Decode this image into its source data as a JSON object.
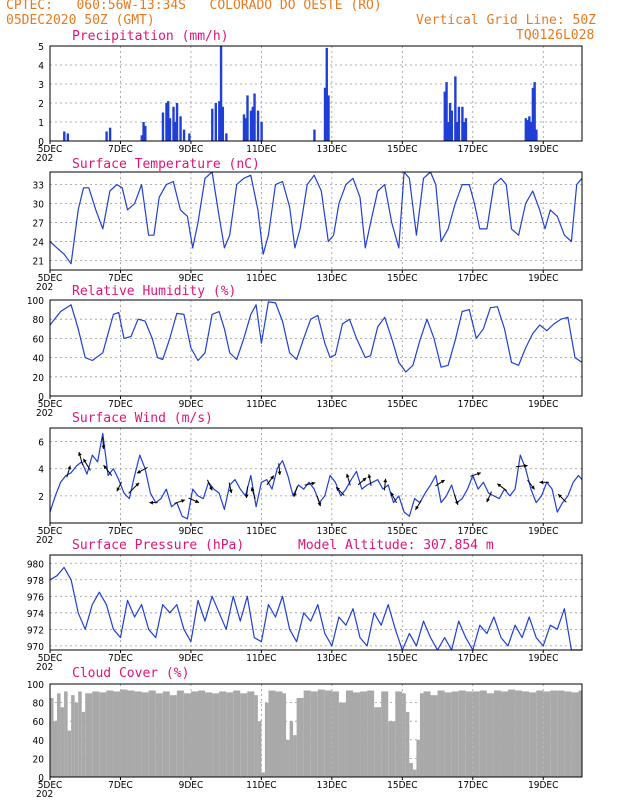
{
  "header": {
    "line1": "CPTEC:   060:56W-13:34S   COLORADO DO OESTE (RO)",
    "line2_left": "05DEC2020 50Z (GMT)",
    "line2_right": "Vertical Grid Line: 50Z",
    "line3_right": "TQ0126L028"
  },
  "colors": {
    "header": "#e87a1e",
    "titles": "#e0147a",
    "series": "#1f3fd6",
    "cloud": "#a9a9a9"
  },
  "x_axis": {
    "labels": [
      "5DEC",
      "7DEC",
      "9DEC",
      "11DEC",
      "13DEC",
      "15DEC",
      "17DEC",
      "19DEC"
    ],
    "day_range": [
      5,
      20.1
    ],
    "under_label": "202"
  },
  "chart_data": [
    {
      "type": "bar",
      "title": "Precipitation (mm/h)",
      "ylim": [
        0,
        5
      ],
      "yticks": [
        "0",
        "1",
        "2",
        "3",
        "4",
        "5"
      ],
      "x_days": [
        5.4,
        5.5,
        6.6,
        6.7,
        7.6,
        7.65,
        7.7,
        8.2,
        8.3,
        8.35,
        8.4,
        8.5,
        8.55,
        8.6,
        8.7,
        8.8,
        8.95,
        9.6,
        9.7,
        9.8,
        9.85,
        9.9,
        10.0,
        10.5,
        10.55,
        10.6,
        10.7,
        10.75,
        10.8,
        10.9,
        11.0,
        12.5,
        12.8,
        12.85,
        12.9,
        16.2,
        16.25,
        16.3,
        16.35,
        16.4,
        16.5,
        16.55,
        16.6,
        16.7,
        16.75,
        16.8,
        18.5,
        18.55,
        18.6,
        18.65,
        18.7,
        18.75,
        18.8
      ],
      "values": [
        0.5,
        0.4,
        0.5,
        0.7,
        0.3,
        1.0,
        0.8,
        1.5,
        2.0,
        2.1,
        1.2,
        1.8,
        1.0,
        2.0,
        1.3,
        0.6,
        0.4,
        1.7,
        2.0,
        2.1,
        5.0,
        1.8,
        0.4,
        1.4,
        1.2,
        2.4,
        1.6,
        1.8,
        2.5,
        1.6,
        1.0,
        0.6,
        2.8,
        4.9,
        2.4,
        2.6,
        3.1,
        1.0,
        2.0,
        1.6,
        3.4,
        1.0,
        1.8,
        1.8,
        1.0,
        1.2,
        1.2,
        1.1,
        1.3,
        1.0,
        2.8,
        3.1,
        0.6
      ]
    },
    {
      "type": "line",
      "title": "Surface Temperature (nC)",
      "ylim": [
        19.5,
        35
      ],
      "yticks": [
        "21",
        "24",
        "27",
        "30",
        "33"
      ],
      "x_days": [
        5.0,
        5.2,
        5.4,
        5.6,
        5.8,
        5.95,
        6.1,
        6.3,
        6.5,
        6.7,
        6.9,
        7.05,
        7.2,
        7.4,
        7.6,
        7.8,
        7.95,
        8.1,
        8.3,
        8.5,
        8.7,
        8.9,
        9.05,
        9.2,
        9.4,
        9.6,
        9.8,
        9.95,
        10.1,
        10.3,
        10.5,
        10.7,
        10.9,
        11.05,
        11.2,
        11.4,
        11.6,
        11.8,
        11.95,
        12.1,
        12.3,
        12.5,
        12.7,
        12.9,
        13.05,
        13.2,
        13.4,
        13.6,
        13.8,
        13.95,
        14.1,
        14.3,
        14.5,
        14.7,
        14.9,
        15.05,
        15.2,
        15.4,
        15.6,
        15.8,
        15.95,
        16.1,
        16.3,
        16.5,
        16.7,
        16.9,
        17.05,
        17.2,
        17.4,
        17.6,
        17.8,
        17.95,
        18.1,
        18.3,
        18.5,
        18.7,
        18.9,
        19.05,
        19.2,
        19.4,
        19.6,
        19.8,
        19.95,
        20.1
      ],
      "values": [
        24,
        23,
        22,
        20.5,
        29,
        32.5,
        32.5,
        29,
        26,
        32,
        33,
        32.5,
        29,
        30,
        33,
        25,
        25,
        31,
        33,
        33.5,
        29,
        28,
        23,
        27,
        34,
        35,
        28,
        23,
        25,
        33,
        34,
        34.5,
        29,
        22,
        25,
        33,
        33.5,
        29.5,
        23,
        26,
        33,
        34.5,
        32,
        24,
        25,
        30,
        33,
        34,
        31,
        23,
        27,
        32,
        33,
        27,
        23,
        35,
        34,
        25,
        34,
        35,
        33,
        24,
        26,
        30,
        33,
        33,
        30,
        26,
        26,
        33,
        34,
        33,
        26,
        25,
        30,
        32,
        29,
        26,
        29,
        28,
        25,
        24,
        33,
        34
      ]
    },
    {
      "type": "line",
      "title": "Relative Humidity (%)",
      "ylim": [
        0,
        100
      ],
      "yticks": [
        "0",
        "20",
        "40",
        "60",
        "80",
        "100"
      ],
      "x_days": [
        5.0,
        5.3,
        5.6,
        5.8,
        6.0,
        6.2,
        6.5,
        6.8,
        6.95,
        7.1,
        7.3,
        7.5,
        7.7,
        7.9,
        8.05,
        8.2,
        8.4,
        8.6,
        8.8,
        9.0,
        9.2,
        9.4,
        9.6,
        9.8,
        9.95,
        10.1,
        10.3,
        10.5,
        10.7,
        10.85,
        11.0,
        11.2,
        11.4,
        11.6,
        11.8,
        12.0,
        12.2,
        12.4,
        12.6,
        12.8,
        12.95,
        13.1,
        13.3,
        13.5,
        13.7,
        13.95,
        14.1,
        14.3,
        14.5,
        14.7,
        14.9,
        15.1,
        15.3,
        15.5,
        15.7,
        15.9,
        16.1,
        16.3,
        16.5,
        16.7,
        16.9,
        17.1,
        17.3,
        17.5,
        17.7,
        17.9,
        18.1,
        18.3,
        18.5,
        18.7,
        18.9,
        19.1,
        19.3,
        19.5,
        19.7,
        19.9,
        20.1
      ],
      "values": [
        74,
        88,
        95,
        70,
        40,
        37,
        45,
        85,
        87,
        60,
        62,
        80,
        78,
        60,
        40,
        38,
        60,
        86,
        85,
        50,
        37,
        45,
        85,
        88,
        70,
        45,
        38,
        60,
        85,
        95,
        55,
        98,
        97,
        78,
        45,
        38,
        60,
        80,
        84,
        55,
        40,
        43,
        75,
        80,
        60,
        40,
        42,
        72,
        82,
        60,
        35,
        25,
        32,
        58,
        80,
        60,
        30,
        32,
        58,
        88,
        90,
        60,
        70,
        92,
        93,
        70,
        35,
        32,
        50,
        65,
        74,
        68,
        75,
        80,
        82,
        40,
        35
      ]
    },
    {
      "type": "line",
      "title": "Surface Wind (m/s)",
      "ylim": [
        0,
        7
      ],
      "yticks": [
        "2",
        "4",
        "6"
      ],
      "x_days": [
        5.0,
        5.15,
        5.3,
        5.45,
        5.6,
        5.75,
        5.9,
        6.05,
        6.2,
        6.35,
        6.5,
        6.65,
        6.8,
        6.95,
        7.1,
        7.25,
        7.4,
        7.55,
        7.7,
        7.85,
        8.0,
        8.15,
        8.3,
        8.45,
        8.6,
        8.75,
        8.9,
        9.05,
        9.2,
        9.35,
        9.5,
        9.65,
        9.8,
        9.95,
        10.1,
        10.25,
        10.4,
        10.55,
        10.7,
        10.85,
        11.0,
        11.15,
        11.3,
        11.45,
        11.6,
        11.75,
        11.9,
        12.05,
        12.2,
        12.35,
        12.5,
        12.65,
        12.8,
        12.95,
        13.1,
        13.25,
        13.4,
        13.55,
        13.7,
        13.85,
        14.0,
        14.15,
        14.3,
        14.45,
        14.6,
        14.75,
        14.9,
        15.05,
        15.2,
        15.35,
        15.5,
        15.65,
        15.8,
        15.95,
        16.1,
        16.25,
        16.4,
        16.55,
        16.7,
        16.85,
        17.0,
        17.15,
        17.3,
        17.45,
        17.6,
        17.75,
        17.9,
        18.05,
        18.2,
        18.35,
        18.5,
        18.65,
        18.8,
        18.95,
        19.1,
        19.25,
        19.4,
        19.55,
        19.7,
        19.85,
        20.0,
        20.1
      ],
      "values": [
        0.8,
        2.0,
        3.0,
        3.5,
        3.7,
        4.2,
        4.5,
        3.6,
        5.0,
        4.5,
        6.6,
        3.5,
        4.0,
        3.2,
        2.2,
        1.8,
        3.5,
        5.0,
        4.0,
        2.2,
        1.5,
        1.8,
        2.5,
        1.2,
        1.5,
        0.5,
        0.3,
        2.5,
        2.0,
        1.8,
        3.0,
        2.5,
        2.2,
        1.0,
        2.8,
        3.2,
        2.5,
        2.0,
        3.5,
        1.2,
        3.0,
        3.2,
        2.5,
        4.0,
        4.6,
        3.5,
        2.0,
        2.8,
        2.5,
        3.0,
        2.5,
        1.5,
        2.0,
        3.5,
        3.0,
        2.0,
        2.5,
        3.2,
        3.8,
        2.5,
        2.8,
        3.0,
        3.2,
        2.5,
        2.8,
        1.5,
        2.0,
        0.8,
        0.5,
        1.8,
        1.5,
        2.2,
        2.8,
        3.5,
        1.5,
        2.0,
        2.8,
        1.5,
        1.8,
        2.5,
        3.5,
        2.5,
        3.0,
        2.2,
        2.0,
        1.8,
        2.5,
        2.0,
        2.5,
        5.0,
        4.0,
        2.5,
        1.5,
        2.0,
        3.0,
        2.5,
        0.8,
        1.5,
        2.0,
        3.0,
        3.5,
        3.2
      ]
    },
    {
      "type": "line",
      "title": "Surface Pressure (hPa)",
      "annotation": "Model Altitude: 307.854 m",
      "ylim": [
        969.5,
        981
      ],
      "yticks": [
        "970",
        "972",
        "974",
        "976",
        "978",
        "980"
      ],
      "x_days": [
        5.0,
        5.2,
        5.4,
        5.6,
        5.8,
        6.0,
        6.2,
        6.4,
        6.6,
        6.8,
        7.0,
        7.2,
        7.4,
        7.6,
        7.8,
        8.0,
        8.2,
        8.4,
        8.6,
        8.8,
        9.0,
        9.2,
        9.4,
        9.6,
        9.8,
        10.0,
        10.2,
        10.4,
        10.6,
        10.8,
        11.0,
        11.2,
        11.4,
        11.6,
        11.8,
        12.0,
        12.2,
        12.4,
        12.6,
        12.8,
        13.0,
        13.2,
        13.4,
        13.6,
        13.8,
        14.0,
        14.2,
        14.4,
        14.6,
        14.8,
        15.0,
        15.2,
        15.4,
        15.6,
        15.8,
        16.0,
        16.2,
        16.4,
        16.6,
        16.8,
        17.0,
        17.2,
        17.4,
        17.6,
        17.8,
        18.0,
        18.2,
        18.4,
        18.6,
        18.8,
        19.0,
        19.2,
        19.4,
        19.6,
        19.8,
        20.0,
        20.1
      ],
      "values": [
        978,
        978.5,
        979.5,
        978,
        974,
        972,
        975,
        976.5,
        975,
        972,
        971,
        975.5,
        973.5,
        975,
        972,
        971,
        975,
        974,
        975,
        972,
        970.5,
        975.5,
        973,
        976,
        974,
        972,
        976,
        973,
        976,
        971,
        970.5,
        975,
        973.5,
        976,
        972,
        970.5,
        974,
        973,
        975,
        971.5,
        970,
        973.5,
        972.5,
        974.5,
        971,
        970,
        974,
        972.5,
        975,
        972,
        969,
        971.5,
        970,
        973,
        971,
        969.5,
        971,
        969,
        973,
        971,
        969.5,
        972.5,
        971.5,
        973.5,
        971,
        970,
        972.5,
        971,
        973.5,
        971,
        970,
        972.5,
        972,
        974.5,
        969.5,
        969.5,
        969.5
      ]
    },
    {
      "type": "area",
      "title": "Cloud Cover (%)",
      "ylim": [
        0,
        100
      ],
      "yticks": [
        "0",
        "20",
        "40",
        "60",
        "80",
        "100"
      ],
      "x_days": [
        5.0,
        5.1,
        5.2,
        5.3,
        5.4,
        5.5,
        5.6,
        5.7,
        5.8,
        5.9,
        6.0,
        6.2,
        6.4,
        6.6,
        6.8,
        7.0,
        7.2,
        7.4,
        7.6,
        7.8,
        8.0,
        8.2,
        8.4,
        8.6,
        8.8,
        9.0,
        9.2,
        9.4,
        9.6,
        9.8,
        10.0,
        10.2,
        10.4,
        10.6,
        10.8,
        10.9,
        11.0,
        11.1,
        11.2,
        11.4,
        11.6,
        11.7,
        11.8,
        11.9,
        12.0,
        12.2,
        12.4,
        12.6,
        12.8,
        13.0,
        13.2,
        13.4,
        13.6,
        13.8,
        14.0,
        14.2,
        14.4,
        14.6,
        14.8,
        15.0,
        15.1,
        15.2,
        15.3,
        15.4,
        15.5,
        15.6,
        15.8,
        16.0,
        16.2,
        16.4,
        16.6,
        16.8,
        17.0,
        17.2,
        17.4,
        17.6,
        17.8,
        18.0,
        18.2,
        18.4,
        18.6,
        18.8,
        19.0,
        19.2,
        19.4,
        19.6,
        19.8,
        20.0,
        20.1
      ],
      "values": [
        85,
        60,
        90,
        75,
        92,
        50,
        88,
        80,
        92,
        70,
        90,
        92,
        91,
        93,
        92,
        94,
        93,
        92,
        91,
        93,
        90,
        92,
        88,
        93,
        90,
        92,
        93,
        91,
        90,
        92,
        91,
        93,
        90,
        92,
        88,
        60,
        5,
        80,
        93,
        92,
        90,
        40,
        60,
        45,
        85,
        93,
        92,
        94,
        93,
        92,
        80,
        93,
        91,
        92,
        93,
        75,
        92,
        60,
        92,
        90,
        70,
        15,
        8,
        40,
        90,
        92,
        88,
        93,
        91,
        92,
        93,
        92,
        92,
        93,
        90,
        93,
        92,
        94,
        93,
        92,
        91,
        93,
        92,
        93,
        93,
        92,
        91,
        93,
        92
      ]
    }
  ],
  "wind_vectors": [
    {
      "day": 5.5,
      "u": 0.3,
      "v": 1.0
    },
    {
      "day": 5.9,
      "u": -0.3,
      "v": 1.1
    },
    {
      "day": 6.1,
      "u": -0.6,
      "v": 1.0
    },
    {
      "day": 6.5,
      "u": 0.1,
      "v": -1.0
    },
    {
      "day": 6.7,
      "u": -0.7,
      "v": 0.9
    },
    {
      "day": 7.0,
      "u": -0.4,
      "v": -0.8
    },
    {
      "day": 7.3,
      "u": 0.9,
      "v": 0.9
    },
    {
      "day": 7.7,
      "u": -0.9,
      "v": -0.5
    },
    {
      "day": 8.0,
      "u": -0.7,
      "v": 0.0
    },
    {
      "day": 8.6,
      "u": 0.9,
      "v": 0.3
    },
    {
      "day": 9.0,
      "u": 0.9,
      "v": -0.4
    },
    {
      "day": 9.5,
      "u": 0.4,
      "v": -0.9
    },
    {
      "day": 10.1,
      "u": 0.2,
      "v": -0.9
    },
    {
      "day": 10.6,
      "u": -0.1,
      "v": -1.0
    },
    {
      "day": 10.8,
      "u": -0.3,
      "v": 1.0
    },
    {
      "day": 11.2,
      "u": 0.6,
      "v": 0.8
    },
    {
      "day": 11.5,
      "u": 0.1,
      "v": -1.0
    },
    {
      "day": 12.0,
      "u": -0.3,
      "v": -0.9
    },
    {
      "day": 12.3,
      "u": 0.9,
      "v": 0.2
    },
    {
      "day": 12.6,
      "u": 0.3,
      "v": -0.9
    },
    {
      "day": 13.3,
      "u": -0.7,
      "v": 0.7
    },
    {
      "day": 13.5,
      "u": -0.3,
      "v": 1.0
    },
    {
      "day": 13.8,
      "u": 0.7,
      "v": 0.6
    },
    {
      "day": 14.1,
      "u": -0.2,
      "v": 1.0
    },
    {
      "day": 14.5,
      "u": 0.1,
      "v": 1.0
    },
    {
      "day": 14.8,
      "u": -0.5,
      "v": 0.9
    },
    {
      "day": 15.5,
      "u": -0.5,
      "v": -0.8
    },
    {
      "day": 16.0,
      "u": 0.8,
      "v": 0.5
    },
    {
      "day": 16.5,
      "u": 0.3,
      "v": -0.9
    },
    {
      "day": 17.0,
      "u": 0.9,
      "v": 0.3
    },
    {
      "day": 17.5,
      "u": -0.4,
      "v": -0.9
    },
    {
      "day": 17.9,
      "u": -0.8,
      "v": 0.6
    },
    {
      "day": 18.3,
      "u": 1.0,
      "v": 0.1
    },
    {
      "day": 18.6,
      "u": 0.6,
      "v": -0.8
    },
    {
      "day": 19.1,
      "u": -0.8,
      "v": 0.0
    },
    {
      "day": 19.6,
      "u": -0.7,
      "v": 0.7
    }
  ]
}
